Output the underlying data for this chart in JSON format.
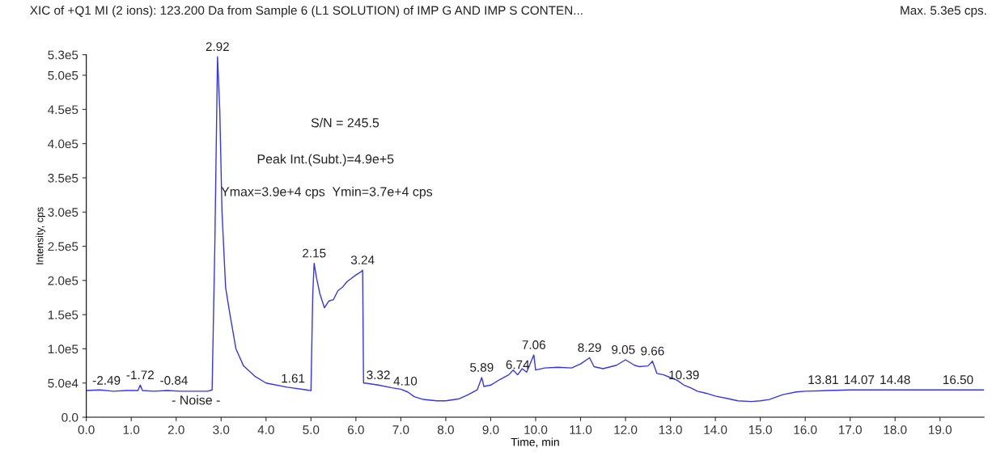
{
  "chart_data": {
    "type": "line",
    "title": "XIC of +Q1 MI (2 ions): 123.200 Da from Sample 6 (L1 SOLUTION) of IMP G AND IMP S CONTEN...",
    "subtitle": "Max. 5.3e5 cps.",
    "xlabel": "Time, min",
    "ylabel": "Intensity, cps",
    "series": [
      {
        "color": "#3333ff",
        "x": [
          0,
          0.3,
          0.6,
          0.9,
          1.15,
          1.2,
          1.25,
          1.5,
          1.8,
          2.1,
          2.4,
          2.7,
          2.8,
          2.86,
          2.92,
          2.97,
          3.02,
          3.1,
          3.19,
          3.33,
          3.5,
          3.75,
          4.0,
          4.47,
          4.9,
          5.0,
          5.04,
          5.07,
          5.12,
          5.2,
          5.3,
          5.4,
          5.5,
          5.6,
          5.7,
          5.8,
          5.9,
          6.0,
          6.1,
          6.15,
          6.17,
          6.2,
          6.5,
          6.8,
          7.0,
          7.15,
          7.3,
          7.5,
          7.8,
          8.0,
          8.3,
          8.5,
          8.7,
          8.8,
          8.85,
          9.0,
          9.2,
          9.4,
          9.5,
          9.6,
          9.7,
          9.8,
          9.96,
          10.0,
          10.2,
          10.5,
          10.8,
          11.0,
          11.2,
          11.3,
          11.5,
          11.8,
          12.0,
          12.2,
          12.3,
          12.5,
          12.6,
          12.7,
          12.85,
          13.0,
          13.15,
          13.3,
          13.45,
          13.6,
          13.8,
          14.0,
          14.3,
          14.5,
          14.8,
          15.0,
          15.2,
          15.5,
          15.8,
          16.0,
          16.5,
          17.0,
          18.0,
          19.0,
          19.98
        ],
        "values": [
          39000,
          40000,
          38000,
          39000,
          39000,
          47000,
          39000,
          38000,
          39000,
          38000,
          38000,
          38000,
          40000,
          250000,
          527000,
          450000,
          300000,
          190000,
          153000,
          100000,
          75000,
          60000,
          50000,
          44000,
          40000,
          39000,
          180000,
          225000,
          205000,
          180000,
          160000,
          170000,
          172000,
          185000,
          190000,
          198000,
          203000,
          208000,
          212000,
          215000,
          50000,
          50000,
          47000,
          43000,
          41000,
          37000,
          30000,
          26000,
          24000,
          24000,
          27000,
          33000,
          40000,
          58000,
          45000,
          47000,
          55000,
          62000,
          69000,
          62000,
          71000,
          66000,
          91000,
          69000,
          72000,
          73000,
          72000,
          78000,
          87000,
          74000,
          71000,
          76000,
          84000,
          76000,
          74000,
          75000,
          82000,
          64000,
          62000,
          58000,
          54000,
          47000,
          43000,
          38000,
          35000,
          31000,
          27000,
          24000,
          23000,
          24000,
          26000,
          33000,
          37000,
          38000,
          39000,
          40000,
          40000,
          40000,
          40000
        ]
      }
    ],
    "xlim": [
      0,
      19.98
    ],
    "xticks": [
      {
        "value": 0,
        "label": "0.0"
      },
      {
        "value": 1,
        "label": "1.0"
      },
      {
        "value": 2,
        "label": "2.0"
      },
      {
        "value": 3,
        "label": "3.0"
      },
      {
        "value": 4,
        "label": "4.0"
      },
      {
        "value": 5,
        "label": "5.0"
      },
      {
        "value": 6,
        "label": "6.0"
      },
      {
        "value": 7,
        "label": "7.0"
      },
      {
        "value": 8,
        "label": "8.0"
      },
      {
        "value": 9,
        "label": "9.0"
      },
      {
        "value": 10,
        "label": "10.0"
      },
      {
        "value": 11,
        "label": "11.0"
      },
      {
        "value": 12,
        "label": "12.0"
      },
      {
        "value": 13,
        "label": "13.0"
      },
      {
        "value": 14,
        "label": "14.0"
      },
      {
        "value": 15,
        "label": "15.0"
      },
      {
        "value": 16,
        "label": "16.0"
      },
      {
        "value": 17,
        "label": "17.0"
      },
      {
        "value": 18,
        "label": "18.0"
      },
      {
        "value": 19,
        "label": "19.0"
      }
    ],
    "ylim": [
      0,
      530000
    ],
    "yticks": [
      {
        "value": 0,
        "label": "0.0"
      },
      {
        "value": 50000,
        "label": "5.0e4"
      },
      {
        "value": 100000,
        "label": "1.0e5"
      },
      {
        "value": 150000,
        "label": "1.5e5"
      },
      {
        "value": 200000,
        "label": "2.0e5"
      },
      {
        "value": 250000,
        "label": "2.5e5"
      },
      {
        "value": 300000,
        "label": "3.0e5"
      },
      {
        "value": 350000,
        "label": "3.5e5"
      },
      {
        "value": 400000,
        "label": "4.0e5"
      },
      {
        "value": 450000,
        "label": "4.5e5"
      },
      {
        "value": 500000,
        "label": "5.0e5"
      },
      {
        "value": 530000,
        "label": "5.3e5"
      }
    ],
    "grid": false,
    "annotations": [
      "S/N = 245.5",
      "Peak Int.(Subt.)=4.9e+5",
      "Ymax=3.9e+4 cps  Ymin=3.7e+4 cps",
      "- Noise -",
      {
        "text": "-2.49",
        "x": 0.45,
        "y": 39000
      },
      {
        "text": "-1.72",
        "x": 1.2,
        "y": 47000
      },
      {
        "text": "-0.84",
        "x": 1.95,
        "y": 39000
      },
      {
        "text": "2.92",
        "x": 2.92,
        "y": 527000
      },
      {
        "text": "1.61",
        "x": 4.6,
        "y": 42000
      },
      {
        "text": "2.15",
        "x": 5.07,
        "y": 225000
      },
      {
        "text": "3.24",
        "x": 6.15,
        "y": 215000
      },
      {
        "text": "3.32",
        "x": 6.5,
        "y": 47000
      },
      {
        "text": "4.10",
        "x": 7.1,
        "y": 38000
      },
      {
        "text": "5.89",
        "x": 8.8,
        "y": 58000
      },
      {
        "text": "6.74",
        "x": 9.6,
        "y": 62000
      },
      {
        "text": "7.06",
        "x": 9.96,
        "y": 91000
      },
      {
        "text": "8.29",
        "x": 11.2,
        "y": 87000
      },
      {
        "text": "9.05",
        "x": 11.95,
        "y": 84000
      },
      {
        "text": "9.66",
        "x": 12.6,
        "y": 82000
      },
      {
        "text": "10.39",
        "x": 13.3,
        "y": 47000
      },
      {
        "text": "13.81",
        "x": 16.4,
        "y": 40000
      },
      {
        "text": "14.07",
        "x": 17.2,
        "y": 40000
      },
      {
        "text": "14.48",
        "x": 18.0,
        "y": 40000
      },
      {
        "text": "16.50",
        "x": 19.4,
        "y": 40000
      }
    ]
  }
}
